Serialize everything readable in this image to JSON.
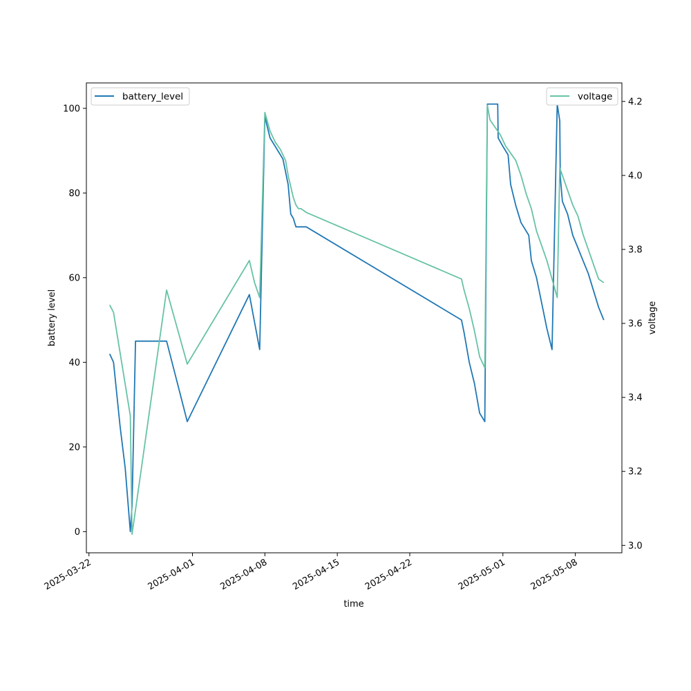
{
  "chart_data": {
    "type": "line",
    "xlabel": "time",
    "ylabel_left": "battery level",
    "ylabel_right": "voltage",
    "x_range": [
      "2025-03-21 18:00",
      "2025-05-12 12:00"
    ],
    "y_left_lim": [
      -5,
      106
    ],
    "y_right_lim": [
      2.98,
      4.25
    ],
    "x_ticks": [
      "2025-03-22",
      "2025-04-01",
      "2025-04-08",
      "2025-04-15",
      "2025-04-22",
      "2025-05-01",
      "2025-05-08"
    ],
    "y_left_ticks": [
      0,
      20,
      40,
      60,
      80,
      100
    ],
    "y_right_ticks": [
      3.0,
      3.2,
      3.4,
      3.6,
      3.8,
      4.0,
      4.2
    ],
    "colors": {
      "battery_level": "#1f77b4",
      "voltage": "#66c2a5"
    },
    "legend_left": {
      "placement": "upper left",
      "label": "battery_level"
    },
    "legend_right": {
      "placement": "upper right",
      "label": "voltage"
    },
    "series": [
      {
        "name": "battery_level",
        "axis": "left",
        "x": [
          "2025-03-24 00:00",
          "2025-03-24 09:00",
          "2025-03-25 00:00",
          "2025-03-25 12:00",
          "2025-03-26 00:00",
          "2025-03-26 04:00",
          "2025-03-26 12:00",
          "2025-03-26 13:00",
          "2025-03-29 12:00",
          "2025-03-31 12:00",
          "2025-04-06 12:00",
          "2025-04-07 12:00",
          "2025-04-08 00:00",
          "2025-04-08 12:00",
          "2025-04-09 12:00",
          "2025-04-09 18:00",
          "2025-04-10 06:00",
          "2025-04-10 12:00",
          "2025-04-10 18:00",
          "2025-04-11 00:00",
          "2025-04-11 06:00",
          "2025-04-11 12:00",
          "2025-04-11 18:00",
          "2025-04-12 00:00",
          "2025-04-27 00:00",
          "2025-04-27 06:00",
          "2025-04-27 18:00",
          "2025-04-28 06:00",
          "2025-04-28 18:00",
          "2025-04-29 06:00",
          "2025-04-29 12:00",
          "2025-04-29 13:00",
          "2025-04-29 15:00",
          "2025-04-30 12:00",
          "2025-04-30 13:00",
          "2025-05-01 00:00",
          "2025-05-01 12:00",
          "2025-05-01 18:00",
          "2025-05-02 06:00",
          "2025-05-02 18:00",
          "2025-05-03 12:00",
          "2025-05-03 18:00",
          "2025-05-04 06:00",
          "2025-05-04 18:00",
          "2025-05-05 06:00",
          "2025-05-05 18:00",
          "2025-05-06 06:00",
          "2025-05-06 12:00",
          "2025-05-06 13:00",
          "2025-05-06 18:00",
          "2025-05-07 06:00",
          "2025-05-07 18:00",
          "2025-05-08 06:00",
          "2025-05-08 18:00",
          "2025-05-09 06:00",
          "2025-05-09 18:00",
          "2025-05-10 06:00",
          "2025-05-10 18:00"
        ],
        "values": [
          42,
          40,
          25,
          15,
          0,
          6,
          45,
          45,
          45,
          26,
          56,
          43,
          98,
          93,
          89,
          88,
          82,
          75,
          74,
          72,
          72,
          72,
          72,
          72,
          50,
          47,
          40,
          35,
          28,
          26,
          101,
          101,
          101,
          101,
          93,
          91,
          89,
          82,
          77,
          73,
          70,
          64,
          60,
          54,
          48,
          43,
          101,
          97,
          84,
          78,
          75,
          70,
          67,
          64,
          61,
          57,
          53,
          50
        ],
        "note_ignore": ""
      },
      {
        "name": "voltage",
        "axis": "right",
        "x": [
          "2025-03-24 00:00",
          "2025-03-24 09:00",
          "2025-03-26 00:00",
          "2025-03-26 04:00",
          "2025-03-29 12:00",
          "2025-03-31 12:00",
          "2025-04-06 12:00",
          "2025-04-07 00:00",
          "2025-04-07 12:00",
          "2025-04-08 00:00",
          "2025-04-08 12:00",
          "2025-04-09 00:00",
          "2025-04-09 12:00",
          "2025-04-10 00:00",
          "2025-04-10 06:00",
          "2025-04-10 18:00",
          "2025-04-11 00:00",
          "2025-04-11 06:00",
          "2025-04-11 12:00",
          "2025-04-12 00:00",
          "2025-04-27 00:00",
          "2025-04-27 06:00",
          "2025-04-27 18:00",
          "2025-04-28 06:00",
          "2025-04-28 18:00",
          "2025-04-29 06:00",
          "2025-04-29 12:00",
          "2025-04-29 18:00",
          "2025-04-30 06:00",
          "2025-04-30 18:00",
          "2025-05-01 06:00",
          "2025-05-01 18:00",
          "2025-05-02 06:00",
          "2025-05-02 18:00",
          "2025-05-03 06:00",
          "2025-05-03 18:00",
          "2025-05-04 06:00",
          "2025-05-04 18:00",
          "2025-05-05 06:00",
          "2025-05-05 18:00",
          "2025-05-06 06:00",
          "2025-05-06 12:00",
          "2025-05-06 18:00",
          "2025-05-07 06:00",
          "2025-05-07 18:00",
          "2025-05-08 06:00",
          "2025-05-08 18:00",
          "2025-05-09 06:00",
          "2025-05-09 18:00",
          "2025-05-10 06:00",
          "2025-05-10 18:00"
        ],
        "values": [
          3.65,
          3.63,
          3.35,
          3.03,
          3.69,
          3.49,
          3.77,
          3.71,
          3.67,
          4.17,
          4.12,
          4.09,
          4.07,
          4.04,
          4.0,
          3.94,
          3.92,
          3.91,
          3.91,
          3.9,
          3.72,
          3.69,
          3.64,
          3.58,
          3.51,
          3.48,
          4.19,
          4.15,
          4.13,
          4.11,
          4.08,
          4.06,
          4.04,
          4.0,
          3.95,
          3.91,
          3.85,
          3.81,
          3.77,
          3.72,
          3.67,
          4.02,
          4.0,
          3.96,
          3.92,
          3.89,
          3.84,
          3.8,
          3.76,
          3.72,
          3.71
        ],
        "note_ignore": ""
      }
    ]
  }
}
